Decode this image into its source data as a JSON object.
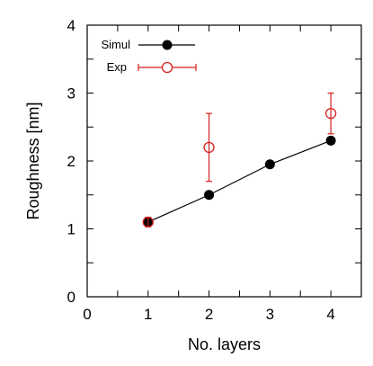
{
  "chart_data": {
    "type": "scatter",
    "title": "",
    "xlabel": "No. layers",
    "ylabel": "Roughness [nm]",
    "xlim": [
      0,
      4.5
    ],
    "ylim": [
      0,
      4
    ],
    "xticks": [
      0,
      1,
      2,
      3,
      4
    ],
    "yticks": [
      0,
      1,
      2,
      3,
      4
    ],
    "legend_position": "top-left",
    "series": [
      {
        "name": "Simul",
        "style": "line-with-filled-circles",
        "color": "#000000",
        "x": [
          1,
          2,
          3,
          4
        ],
        "y": [
          1.1,
          1.5,
          1.95,
          2.3
        ]
      },
      {
        "name": "Exp",
        "style": "open-circles-with-error-bars",
        "color": "#d62020",
        "x": [
          1,
          2,
          4
        ],
        "y": [
          1.1,
          2.2,
          2.7
        ],
        "yerr": [
          0.07,
          0.5,
          0.3
        ]
      }
    ]
  }
}
